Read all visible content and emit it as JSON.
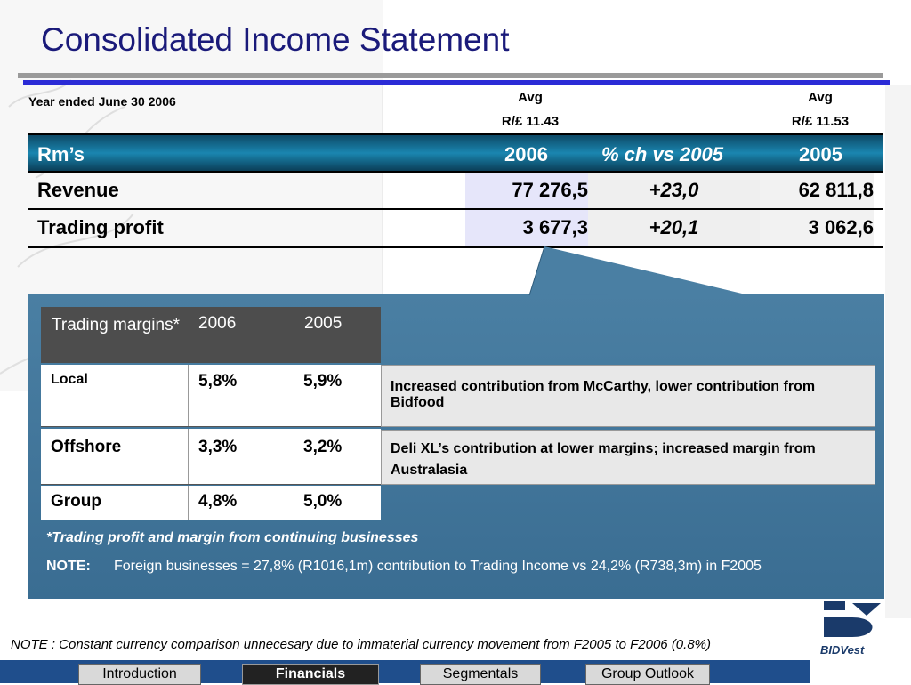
{
  "title": "Consolidated Income Statement",
  "year_label": "Year ended June 30 2006",
  "avg_2006": {
    "line1": "Avg",
    "line2": "R/£ 11.43"
  },
  "avg_2005": {
    "line1": "Avg",
    "line2": "R/£ 11.53"
  },
  "main_table": {
    "headers": {
      "label": "Rm’s",
      "c2006": "2006",
      "change": "% ch vs  2005",
      "c2005": "2005"
    },
    "rows": [
      {
        "label": "Revenue",
        "v2006": "77 276,5",
        "change": "+23,0",
        "v2005": "62 811,8"
      },
      {
        "label": "Trading profit",
        "v2006": "3 677,3",
        "change": "+20,1",
        "v2005": "3 062,6"
      }
    ]
  },
  "margins_table": {
    "headers": {
      "label": "Trading margins*",
      "c2006": "2006",
      "c2005": "2005"
    },
    "rows": [
      {
        "label": "Local",
        "v2006": "5,8%",
        "v2005": "5,9%",
        "comment": "Increased contribution from McCarthy, lower contribution from Bidfood"
      },
      {
        "label": "Offshore",
        "v2006": "3,3%",
        "v2005": "3,2%",
        "comment": "Deli XL’s contribution at lower margins; increased margin from Australasia"
      },
      {
        "label": "Group",
        "v2006": "4,8%",
        "v2005": "5,0%"
      }
    ]
  },
  "footnote": "*Trading profit and margin from continuing businesses",
  "note": {
    "label": "NOTE:",
    "text": "Foreign businesses = 27,8% (R1016,1m) contribution to Trading Income vs 24,2% (R738,3m) in F2005"
  },
  "bottom_note": "NOTE : Constant currency comparison unnecesary due to immaterial currency movement from F2005 to F2006 (0.8%)",
  "nav": {
    "introduction": "Introduction",
    "financials": "Financials",
    "segmentals": "Segmentals",
    "group_outlook": "Group Outlook"
  },
  "logo_text": "BIDVest",
  "colors": {
    "title": "#1a1a7a",
    "header_band": "#1a86b0",
    "callout": "#4a7fa3",
    "navbar": "#1f4e8c"
  }
}
